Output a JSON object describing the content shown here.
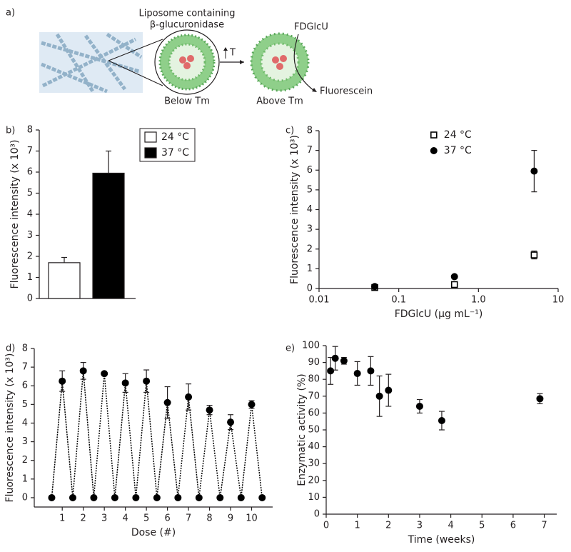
{
  "diagram": {
    "label": "a)",
    "liposome_title": [
      "Liposome containing",
      "β-glucuronidase"
    ],
    "below": "Below Tm",
    "above": "Above Tm",
    "heat": "T",
    "substrate": "FDGlcU",
    "product": "Fluorescein"
  },
  "chart_data": [
    {
      "type": "bar",
      "label": "b)",
      "ylabel": "Fluorescence intensity (x 10³)",
      "ylim": [
        0,
        8
      ],
      "yticks": [
        0,
        1,
        2,
        3,
        4,
        5,
        6,
        7,
        8
      ],
      "legend": "top-right",
      "series": [
        {
          "name": "24 °C",
          "color": "#ffffff",
          "values": [
            1.7
          ],
          "errors": [
            0.25
          ]
        },
        {
          "name": "37 °C",
          "color": "#000000",
          "values": [
            5.95
          ],
          "errors": [
            1.05
          ]
        }
      ]
    },
    {
      "type": "scatter",
      "label": "c)",
      "ylabel": "Fluorescence intensity (x 10³)",
      "xlabel": "FDGlcU (μg mL⁻¹)",
      "xscale": "log",
      "legend": "top-center",
      "xlim": [
        0.01,
        10
      ],
      "xticks": [
        0.01,
        0.1,
        {
          "value": 1,
          "label": "1.0"
        },
        10
      ],
      "ylim": [
        0,
        8
      ],
      "yticks": [
        0,
        1,
        2,
        3,
        4,
        5,
        6,
        7,
        8
      ],
      "x": [
        0.05,
        0.5,
        5
      ],
      "series": [
        {
          "name": "24 °C",
          "color": "#000000",
          "marker": "square-open",
          "values": [
            0.05,
            0.2,
            1.7
          ],
          "errors": [
            null,
            0.08,
            0.2
          ]
        },
        {
          "name": "37 °C",
          "color": "#000000",
          "marker": "circle",
          "values": [
            0.1,
            0.6,
            5.95
          ],
          "errors": [
            null,
            null,
            1.05
          ]
        }
      ]
    },
    {
      "type": "line",
      "label": "d)",
      "ylabel": "Fluorescence intensity (x 10³)",
      "xlabel": "Dose (#)",
      "xlim": [
        -0.33,
        11
      ],
      "xticks": [
        1,
        2,
        3,
        4,
        5,
        6,
        7,
        8,
        9,
        10
      ],
      "ylim": [
        -0.5,
        8
      ],
      "yticks": [
        0,
        1,
        2,
        3,
        4,
        5,
        6,
        7,
        8
      ],
      "x": [
        0.5,
        1,
        1.5,
        2,
        2.5,
        3,
        3.5,
        4,
        4.5,
        5,
        5.5,
        6,
        6.5,
        7,
        7.5,
        8,
        8.5,
        9,
        9.5,
        10,
        10.5
      ],
      "series": [
        {
          "color": "#000000",
          "marker": "circle",
          "values": [
            0,
            6.25,
            0,
            6.8,
            0,
            6.65,
            0,
            6.15,
            0,
            6.25,
            0,
            5.1,
            0,
            5.4,
            0,
            4.7,
            0,
            4.05,
            0,
            5.0,
            0
          ],
          "errors": [
            null,
            0.55,
            null,
            0.45,
            null,
            null,
            null,
            0.5,
            null,
            0.6,
            null,
            0.85,
            null,
            0.7,
            null,
            0.25,
            null,
            0.4,
            null,
            0.2,
            null
          ]
        }
      ]
    },
    {
      "type": "scatter",
      "label": "e)",
      "ylabel": "Enzymatic activity (%)",
      "xlabel": "Time (weeks)",
      "xlim": [
        0,
        7.4
      ],
      "xticks": [
        0,
        1,
        2,
        3,
        4,
        5,
        6,
        7
      ],
      "ylim": [
        0,
        100
      ],
      "yticks": [
        0,
        10,
        20,
        30,
        40,
        50,
        60,
        70,
        80,
        90,
        100
      ],
      "x": [
        0.14,
        0.29,
        0.57,
        1.0,
        1.43,
        1.71,
        2.0,
        3.0,
        3.71,
        6.86
      ],
      "series": [
        {
          "color": "#000000",
          "marker": "circle",
          "values": [
            85,
            92.5,
            91,
            83.5,
            85,
            70,
            73.5,
            64,
            55.5,
            68.5
          ],
          "errors": [
            8,
            7,
            2,
            7,
            8.5,
            12,
            9.5,
            4,
            5.5,
            3
          ]
        }
      ]
    }
  ]
}
